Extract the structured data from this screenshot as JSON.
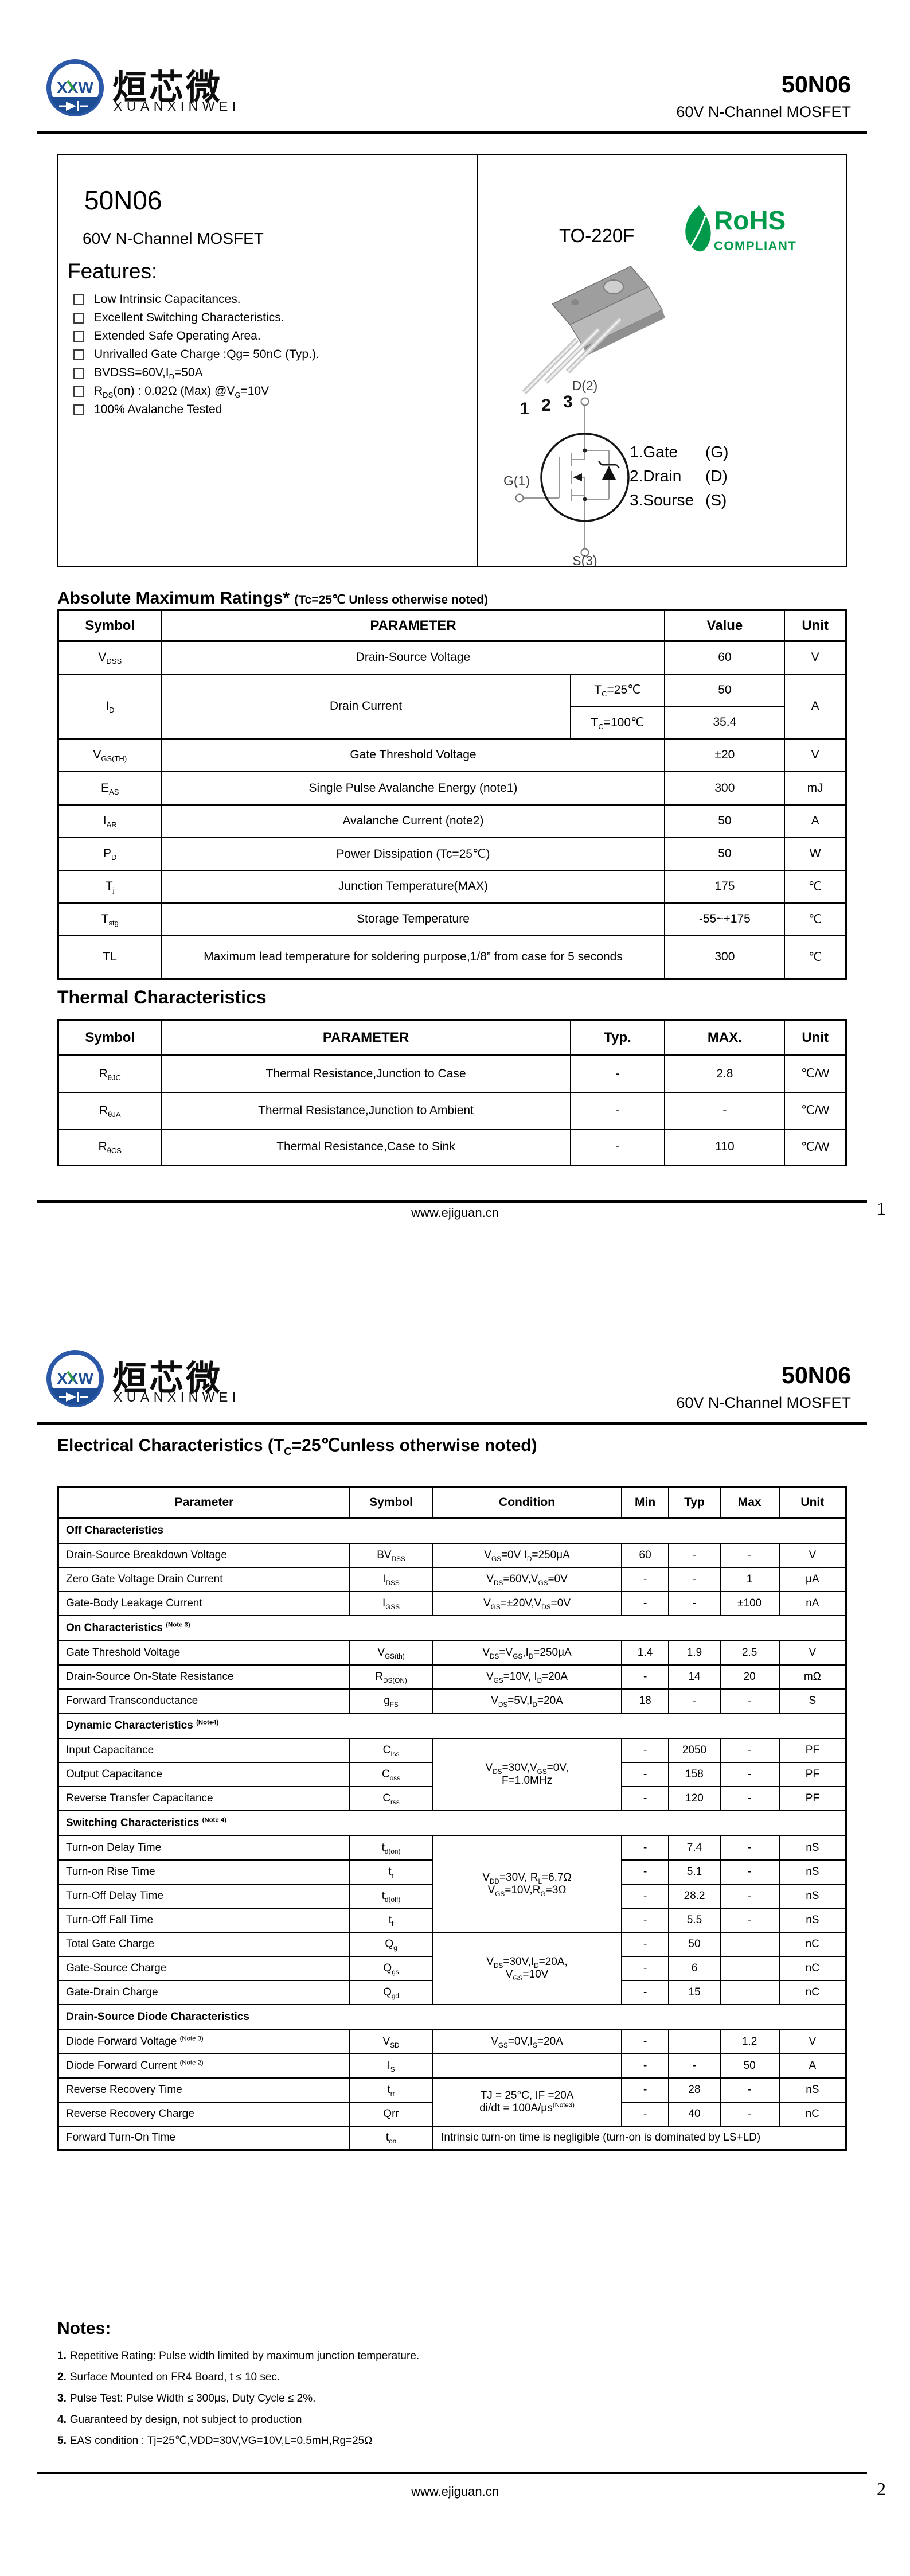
{
  "brand": {
    "logo_letters": "XXW",
    "name_cn": "烜芯微",
    "name_en": "XUANXINWEI"
  },
  "header": {
    "part": "50N06",
    "subtitle": "60V N-Channel MOSFET"
  },
  "footer": {
    "url": "www.ejiguan.cn",
    "page1": "1",
    "page2": "2"
  },
  "page1": {
    "intro": {
      "part": "50N06",
      "subtitle": "60V N-Channel MOSFET",
      "features_title": "Features:",
      "features": [
        "Low Intrinsic Capacitances.",
        "Excellent Switching Characteristics.",
        "Extended Safe Operating Area.",
        "Unrivalled Gate Charge :Qg= 50nC (Typ.).",
        "BVDSS=60V,I_{D}=50A",
        "R_{DS}(on) : 0.02Ω (Max) @V_{G}=10V",
        "100% Avalanche Tested"
      ],
      "package_name": "TO-220F",
      "rohs": {
        "line1": "RoHS",
        "line2": "COMPLIANT"
      },
      "rohs_green": "#009a4a",
      "pin_numbers": [
        "1",
        "2",
        "3"
      ],
      "sch": {
        "d": "D(2)",
        "g": "G(1)",
        "s": "S(3)"
      },
      "pin_legend": [
        {
          "name": "1.Gate",
          "sym": "(G)"
        },
        {
          "name": "2.Drain",
          "sym": "(D)"
        },
        {
          "name": "3.Sourse",
          "sym": "(S)"
        }
      ]
    },
    "abs_max": {
      "title": "Absolute Maximum Ratings*",
      "title_note": "(Tc=25℃ Unless otherwise noted)",
      "col_widths": [
        13.1,
        51.9,
        12.0,
        15.2,
        7.8
      ],
      "h_header": 54,
      "h_row": 57,
      "headers": [
        {
          "t": "Symbol"
        },
        {
          "t": "PARAMETER",
          "cs": 2
        },
        {
          "t": "Value"
        },
        {
          "t": "Unit"
        }
      ],
      "rows": [
        {
          "cells": [
            {
              "t": "V_{DSS}"
            },
            {
              "t": "Drain-Source Voltage",
              "cs": 2
            },
            {
              "t": "60"
            },
            {
              "t": "V"
            }
          ]
        },
        {
          "h": 56,
          "cells": [
            {
              "t": "I_{D}",
              "rs": 2
            },
            {
              "t": "Drain Current",
              "rs": 2
            },
            {
              "t": "T_{C}=25℃"
            },
            {
              "t": "50"
            },
            {
              "t": "A",
              "rs": 2
            }
          ]
        },
        {
          "cells": [
            {
              "t": "T_{C}=100℃"
            },
            {
              "t": "35.4"
            }
          ]
        },
        {
          "cells": [
            {
              "t": "V_{GS(TH)}"
            },
            {
              "t": "Gate Threshold Voltage",
              "cs": 2
            },
            {
              "t": "±20"
            },
            {
              "t": "V"
            }
          ]
        },
        {
          "h": 58,
          "cells": [
            {
              "t": "E_{AS}"
            },
            {
              "t": "Single Pulse Avalanche Energy (note1)",
              "cs": 2
            },
            {
              "t": "300"
            },
            {
              "t": "mJ"
            }
          ]
        },
        {
          "cells": [
            {
              "t": "I_{AR}"
            },
            {
              "t": "Avalanche Current (note2)",
              "cs": 2
            },
            {
              "t": "50"
            },
            {
              "t": "A"
            }
          ]
        },
        {
          "cells": [
            {
              "t": "P_{D}"
            },
            {
              "t": "Power Dissipation (Tc=25℃)",
              "cs": 2
            },
            {
              "t": "50"
            },
            {
              "t": "W"
            }
          ]
        },
        {
          "cells": [
            {
              "t": "T_{j}"
            },
            {
              "t": "Junction Temperature(MAX)",
              "cs": 2
            },
            {
              "t": "175"
            },
            {
              "t": "℃"
            }
          ]
        },
        {
          "cells": [
            {
              "t": "T_{stg}"
            },
            {
              "t": "Storage Temperature",
              "cs": 2
            },
            {
              "t": "-55~+175"
            },
            {
              "t": "℃"
            }
          ]
        },
        {
          "h": 76,
          "cells": [
            {
              "t": "TL"
            },
            {
              "t": "Maximum lead temperature for soldering purpose,1/8” from case for 5 seconds",
              "cs": 2
            },
            {
              "t": "300"
            },
            {
              "t": "℃"
            }
          ]
        }
      ]
    },
    "thermal": {
      "title": "Thermal Characteristics",
      "col_widths": [
        13.1,
        51.9,
        12.0,
        15.2,
        7.8
      ],
      "h_header": 62,
      "h_row": 64,
      "headers": [
        {
          "t": "Symbol"
        },
        {
          "t": "PARAMETER"
        },
        {
          "t": "Typ."
        },
        {
          "t": "MAX."
        },
        {
          "t": "Unit"
        }
      ],
      "rows": [
        {
          "cells": [
            {
              "t": "R_{θJC}"
            },
            {
              "t": "Thermal Resistance,Junction to Case"
            },
            {
              "t": "-"
            },
            {
              "t": "2.8"
            },
            {
              "t": "℃/W"
            }
          ]
        },
        {
          "cells": [
            {
              "t": "R_{θJA}"
            },
            {
              "t": "Thermal Resistance,Junction to Ambient"
            },
            {
              "t": "-"
            },
            {
              "t": "-"
            },
            {
              "t": "℃/W"
            }
          ]
        },
        {
          "cells": [
            {
              "t": "R_{θCS}"
            },
            {
              "t": "Thermal Resistance,Case to Sink"
            },
            {
              "t": "-"
            },
            {
              "t": "110"
            },
            {
              "t": "℃/W"
            }
          ]
        }
      ]
    }
  },
  "page2": {
    "elec": {
      "title": "Electrical Characteristics (T_{C}=25℃unless otherwise noted)",
      "col_widths": [
        37.0,
        10.5,
        24.0,
        6.0,
        6.5,
        7.5,
        8.5
      ],
      "h_header": 54,
      "h_row": 42,
      "h_section": 44,
      "param_left": true,
      "headers": [
        {
          "t": "Parameter"
        },
        {
          "t": "Symbol"
        },
        {
          "t": "Condition"
        },
        {
          "t": "Min"
        },
        {
          "t": "Typ"
        },
        {
          "t": "Max"
        },
        {
          "t": "Unit"
        }
      ],
      "rows": [
        {
          "section": "Off Characteristics"
        },
        {
          "cells": [
            {
              "t": "Drain-Source Breakdown Voltage"
            },
            {
              "t": "BV_{DSS}"
            },
            {
              "t": "V_{GS}=0V I_{D}=250μA"
            },
            {
              "t": "60"
            },
            {
              "t": "-"
            },
            {
              "t": "-"
            },
            {
              "t": "V"
            }
          ]
        },
        {
          "cells": [
            {
              "t": "Zero Gate Voltage Drain Current"
            },
            {
              "t": "I_{DSS}"
            },
            {
              "t": "V_{DS}=60V,V_{GS}=0V"
            },
            {
              "t": "-"
            },
            {
              "t": "-"
            },
            {
              "t": "1"
            },
            {
              "t": "μA"
            }
          ]
        },
        {
          "cells": [
            {
              "t": "Gate-Body Leakage Current"
            },
            {
              "t": "I_{GSS}"
            },
            {
              "t": "V_{GS}=±20V,V_{DS}=0V"
            },
            {
              "t": "-"
            },
            {
              "t": "-"
            },
            {
              "t": "±100"
            },
            {
              "t": "nA"
            }
          ]
        },
        {
          "section": "On Characteristics ^{(Note 3)}"
        },
        {
          "cells": [
            {
              "t": "Gate Threshold Voltage"
            },
            {
              "t": "V_{GS(th)}"
            },
            {
              "t": "V_{DS}=V_{GS},I_{D}=250μA"
            },
            {
              "t": "1.4"
            },
            {
              "t": "1.9"
            },
            {
              "t": "2.5"
            },
            {
              "t": "V"
            }
          ]
        },
        {
          "cells": [
            {
              "t": "Drain-Source On-State Resistance"
            },
            {
              "t": "R_{DS(ON)}"
            },
            {
              "t": "V_{GS}=10V, I_{D}=20A"
            },
            {
              "t": "-"
            },
            {
              "t": "14"
            },
            {
              "t": "20"
            },
            {
              "t": "mΩ"
            }
          ]
        },
        {
          "cells": [
            {
              "t": "Forward Transconductance"
            },
            {
              "t": "g_{FS}"
            },
            {
              "t": "V_{DS}=5V,I_{D}=20A"
            },
            {
              "t": "18"
            },
            {
              "t": "-"
            },
            {
              "t": "-"
            },
            {
              "t": "S"
            }
          ]
        },
        {
          "section": "Dynamic Characteristics ^{(Note4)}"
        },
        {
          "cells": [
            {
              "t": "Input Capacitance"
            },
            {
              "t": "C_{Iss}"
            },
            {
              "t": "V_{DS}=30V,V_{GS}=0V,\nF=1.0MHz",
              "rs": 3
            },
            {
              "t": "-"
            },
            {
              "t": "2050"
            },
            {
              "t": "-"
            },
            {
              "t": "PF"
            }
          ]
        },
        {
          "cells": [
            {
              "t": "Output Capacitance"
            },
            {
              "t": "C_{oss}"
            },
            {
              "t": "-"
            },
            {
              "t": "158"
            },
            {
              "t": "-"
            },
            {
              "t": "PF"
            }
          ]
        },
        {
          "cells": [
            {
              "t": "Reverse Transfer Capacitance"
            },
            {
              "t": "C_{rss}"
            },
            {
              "t": "-"
            },
            {
              "t": "120"
            },
            {
              "t": "-"
            },
            {
              "t": "PF"
            }
          ]
        },
        {
          "section": "Switching Characteristics ^{(Note 4)}"
        },
        {
          "cells": [
            {
              "t": "Turn-on Delay Time"
            },
            {
              "t": "t_{d(on)}"
            },
            {
              "t": "V_{DD}=30V, R_{L}=6.7Ω\nV_{GS}=10V,R_{G}=3Ω",
              "rs": 4
            },
            {
              "t": "-"
            },
            {
              "t": "7.4"
            },
            {
              "t": "-"
            },
            {
              "t": "nS"
            }
          ]
        },
        {
          "cells": [
            {
              "t": "Turn-on Rise Time"
            },
            {
              "t": "t_{r}"
            },
            {
              "t": "-"
            },
            {
              "t": "5.1"
            },
            {
              "t": "-"
            },
            {
              "t": "nS"
            }
          ]
        },
        {
          "cells": [
            {
              "t": "Turn-Off Delay Time"
            },
            {
              "t": "t_{d(off)}"
            },
            {
              "t": "-"
            },
            {
              "t": "28.2"
            },
            {
              "t": "-"
            },
            {
              "t": "nS"
            }
          ]
        },
        {
          "cells": [
            {
              "t": "Turn-Off Fall Time"
            },
            {
              "t": "t_{f}"
            },
            {
              "t": "-"
            },
            {
              "t": "5.5"
            },
            {
              "t": "-"
            },
            {
              "t": "nS"
            }
          ]
        },
        {
          "cells": [
            {
              "t": "Total Gate Charge"
            },
            {
              "t": "Q_{g}"
            },
            {
              "t": "V_{DS}=30V,I_{D}=20A,\nV_{GS}=10V",
              "rs": 3
            },
            {
              "t": "-"
            },
            {
              "t": "50"
            },
            {
              "t": ""
            },
            {
              "t": "nC"
            }
          ]
        },
        {
          "cells": [
            {
              "t": "Gate-Source Charge"
            },
            {
              "t": "Q_{gs}"
            },
            {
              "t": "-"
            },
            {
              "t": "6"
            },
            {
              "t": ""
            },
            {
              "t": "nC"
            }
          ]
        },
        {
          "cells": [
            {
              "t": "Gate-Drain Charge"
            },
            {
              "t": "Q_{gd}"
            },
            {
              "t": "-"
            },
            {
              "t": "15"
            },
            {
              "t": ""
            },
            {
              "t": "nC"
            }
          ]
        },
        {
          "section": "Drain-Source Diode Characteristics"
        },
        {
          "cells": [
            {
              "t": "Diode Forward Voltage ^{(Note 3)}"
            },
            {
              "t": "V_{SD}"
            },
            {
              "t": "V_{GS}=0V,I_{S}=20A"
            },
            {
              "t": "-"
            },
            {
              "t": ""
            },
            {
              "t": "1.2"
            },
            {
              "t": "V"
            }
          ]
        },
        {
          "cells": [
            {
              "t": "Diode Forward Current ^{(Note 2)}"
            },
            {
              "t": "I_{S}"
            },
            {
              "t": ""
            },
            {
              "t": "-"
            },
            {
              "t": "-"
            },
            {
              "t": "50"
            },
            {
              "t": "A"
            }
          ]
        },
        {
          "cells": [
            {
              "t": "Reverse Recovery Time"
            },
            {
              "t": "t_{rr}"
            },
            {
              "t": "TJ = 25°C, IF =20A\ndi/dt = 100A/μs^{(Note3)}",
              "rs": 2
            },
            {
              "t": "-"
            },
            {
              "t": "28"
            },
            {
              "t": "-"
            },
            {
              "t": "nS"
            }
          ]
        },
        {
          "cells": [
            {
              "t": "Reverse Recovery Charge"
            },
            {
              "t": "Qrr"
            },
            {
              "t": "-"
            },
            {
              "t": "40"
            },
            {
              "t": "-"
            },
            {
              "t": "nC"
            }
          ]
        },
        {
          "cells": [
            {
              "t": "Forward Turn-On Time"
            },
            {
              "t": "t_{on}"
            },
            {
              "t": "Intrinsic turn-on time is negligible (turn-on is dominated by LS+LD)",
              "cs": 5,
              "cls": "tl"
            }
          ]
        }
      ]
    },
    "notes": {
      "title": "Notes:",
      "items": [
        {
          "n": "1.",
          "t": "Repetitive Rating: Pulse width limited by maximum junction temperature."
        },
        {
          "n": "2.",
          "t": "Surface Mounted on FR4 Board, t ≤ 10 sec."
        },
        {
          "n": "3.",
          "t": "Pulse Test: Pulse Width ≤ 300μs, Duty Cycle ≤ 2%."
        },
        {
          "n": "4.",
          "t": "Guaranteed by design, not subject to production"
        },
        {
          "n": "5.",
          "t": "EAS condition : Tj=25℃,VDD=30V,VG=10V,L=0.5mH,Rg=25Ω"
        }
      ]
    }
  }
}
